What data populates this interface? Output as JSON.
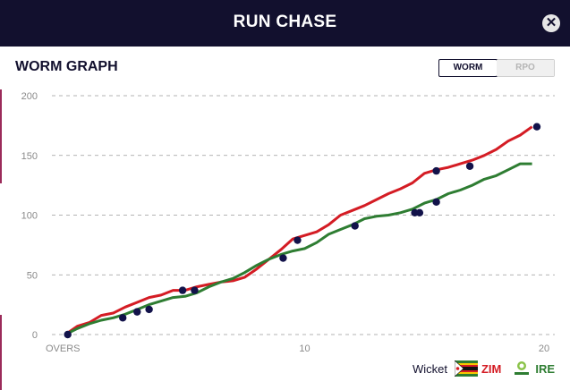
{
  "header": {
    "title": "RUN CHASE",
    "close_icon": "close-icon"
  },
  "panel": {
    "title": "WORM GRAPH"
  },
  "toggle": {
    "options": [
      "WORM",
      "RPO"
    ],
    "active": "WORM"
  },
  "legend": {
    "wicket_label": "Wicket",
    "teams": [
      {
        "name": "ZIM",
        "color": "#d41c24",
        "icon": "zimbabwe-flag-icon"
      },
      {
        "name": "IRE",
        "color": "#2e7d32",
        "icon": "cricket-ireland-logo-icon"
      }
    ]
  },
  "chart_data": {
    "type": "line",
    "xlabel": "OVERS",
    "xlim": [
      0,
      20
    ],
    "ylim": [
      0,
      200
    ],
    "y_ticks": [
      0,
      50,
      100,
      150,
      200
    ],
    "x_ticks": [
      10,
      20
    ],
    "grid": true,
    "series": [
      {
        "name": "ZIM",
        "color": "#d41c24",
        "x": [
          0,
          0.5,
          1,
          1.5,
          2,
          2.5,
          3,
          3.5,
          4,
          4.5,
          5,
          5.5,
          6,
          6.5,
          7,
          7.5,
          8,
          8.5,
          9,
          9.5,
          10,
          10.5,
          11,
          11.5,
          12,
          12.5,
          13,
          13.5,
          14,
          14.5,
          15,
          15.5,
          16,
          16.5,
          17,
          17.5,
          18,
          18.5,
          19,
          19.5
        ],
        "y": [
          0,
          7,
          10,
          16,
          18,
          23,
          27,
          31,
          33,
          37,
          37,
          40,
          42,
          44,
          45,
          48,
          55,
          63,
          71,
          80,
          83,
          86,
          92,
          100,
          104,
          108,
          113,
          118,
          122,
          127,
          135,
          138,
          140,
          143,
          146,
          150,
          155,
          162,
          167,
          174
        ]
      },
      {
        "name": "IRE",
        "color": "#2e7d32",
        "x": [
          0,
          0.5,
          1,
          1.5,
          2,
          2.5,
          3,
          3.5,
          4,
          4.5,
          5,
          5.5,
          6,
          6.5,
          7,
          7.5,
          8,
          8.5,
          9,
          9.5,
          10,
          10.5,
          11,
          11.5,
          12,
          12.5,
          13,
          13.5,
          14,
          14.5,
          15,
          15.5,
          16,
          16.5,
          17,
          17.5,
          18,
          18.5,
          19,
          19.5
        ],
        "y": [
          0,
          5,
          9,
          12,
          14,
          17,
          21,
          25,
          28,
          31,
          32,
          35,
          40,
          44,
          47,
          52,
          58,
          63,
          67,
          70,
          72,
          77,
          84,
          88,
          92,
          97,
          99,
          100,
          102,
          105,
          110,
          113,
          118,
          121,
          125,
          130,
          133,
          138,
          143,
          143
        ]
      }
    ],
    "wickets": [
      {
        "x": 0.1,
        "y": 0
      },
      {
        "x": 2.4,
        "y": 14
      },
      {
        "x": 3.0,
        "y": 19
      },
      {
        "x": 3.5,
        "y": 21
      },
      {
        "x": 4.9,
        "y": 37
      },
      {
        "x": 5.4,
        "y": 37
      },
      {
        "x": 9.1,
        "y": 64
      },
      {
        "x": 9.7,
        "y": 79
      },
      {
        "x": 12.1,
        "y": 91
      },
      {
        "x": 14.6,
        "y": 102
      },
      {
        "x": 14.8,
        "y": 102
      },
      {
        "x": 15.5,
        "y": 111
      },
      {
        "x": 15.5,
        "y": 137
      },
      {
        "x": 16.9,
        "y": 141
      },
      {
        "x": 19.7,
        "y": 174
      }
    ]
  }
}
